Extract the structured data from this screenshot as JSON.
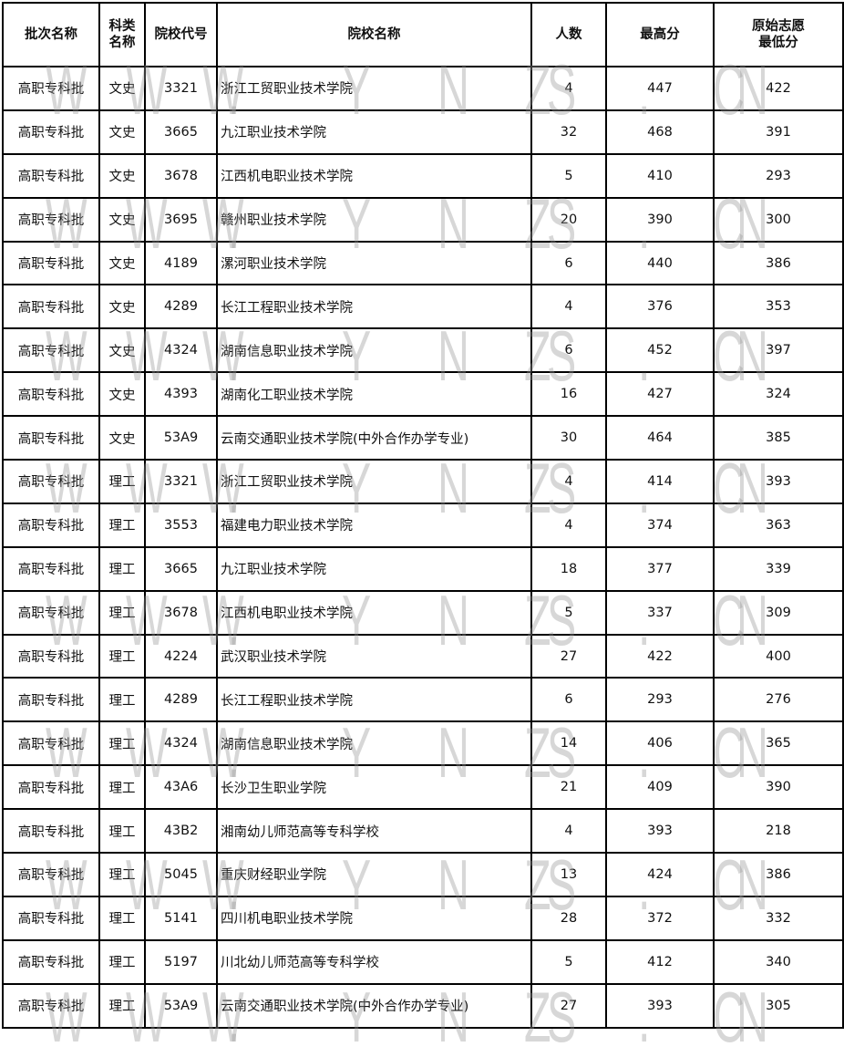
{
  "watermark": "WWW.YNZS.CN",
  "headers": [
    "批次名称",
    "科类名称",
    "院校代号",
    "院校名称",
    "人数",
    "最高分",
    "原始志愿最低分"
  ],
  "header_lines": {
    "subject": [
      "科类",
      "名称"
    ],
    "min": [
      "原始志愿",
      "最低分"
    ]
  },
  "rows": [
    [
      "高职专科批",
      "文史",
      "3321",
      "浙江工贸职业技术学院",
      "4",
      "447",
      "422"
    ],
    [
      "高职专科批",
      "文史",
      "3665",
      "九江职业技术学院",
      "32",
      "468",
      "391"
    ],
    [
      "高职专科批",
      "文史",
      "3678",
      "江西机电职业技术学院",
      "5",
      "410",
      "293"
    ],
    [
      "高职专科批",
      "文史",
      "3695",
      "赣州职业技术学院",
      "20",
      "390",
      "300"
    ],
    [
      "高职专科批",
      "文史",
      "4189",
      "漯河职业技术学院",
      "6",
      "440",
      "386"
    ],
    [
      "高职专科批",
      "文史",
      "4289",
      "长江工程职业技术学院",
      "4",
      "376",
      "353"
    ],
    [
      "高职专科批",
      "文史",
      "4324",
      "湖南信息职业技术学院",
      "6",
      "452",
      "397"
    ],
    [
      "高职专科批",
      "文史",
      "4393",
      "湖南化工职业技术学院",
      "16",
      "427",
      "324"
    ],
    [
      "高职专科批",
      "文史",
      "53A9",
      "云南交通职业技术学院(中外合作办学专业)",
      "30",
      "464",
      "385"
    ],
    [
      "高职专科批",
      "理工",
      "3321",
      "浙江工贸职业技术学院",
      "4",
      "414",
      "393"
    ],
    [
      "高职专科批",
      "理工",
      "3553",
      "福建电力职业技术学院",
      "4",
      "374",
      "363"
    ],
    [
      "高职专科批",
      "理工",
      "3665",
      "九江职业技术学院",
      "18",
      "377",
      "339"
    ],
    [
      "高职专科批",
      "理工",
      "3678",
      "江西机电职业技术学院",
      "5",
      "337",
      "309"
    ],
    [
      "高职专科批",
      "理工",
      "4224",
      "武汉职业技术学院",
      "27",
      "422",
      "400"
    ],
    [
      "高职专科批",
      "理工",
      "4289",
      "长江工程职业技术学院",
      "6",
      "293",
      "276"
    ],
    [
      "高职专科批",
      "理工",
      "4324",
      "湖南信息职业技术学院",
      "14",
      "406",
      "365"
    ],
    [
      "高职专科批",
      "理工",
      "43A6",
      "长沙卫生职业学院",
      "21",
      "409",
      "390"
    ],
    [
      "高职专科批",
      "理工",
      "43B2",
      "湘南幼儿师范高等专科学校",
      "4",
      "393",
      "218"
    ],
    [
      "高职专科批",
      "理工",
      "5045",
      "重庆财经职业学院",
      "13",
      "424",
      "386"
    ],
    [
      "高职专科批",
      "理工",
      "5141",
      "四川机电职业技术学院",
      "28",
      "372",
      "332"
    ],
    [
      "高职专科批",
      "理工",
      "5197",
      "川北幼儿师范高等专科学校",
      "5",
      "412",
      "340"
    ],
    [
      "高职专科批",
      "理工",
      "53A9",
      "云南交通职业技术学院(中外合作办学专业)",
      "27",
      "393",
      "305"
    ]
  ]
}
